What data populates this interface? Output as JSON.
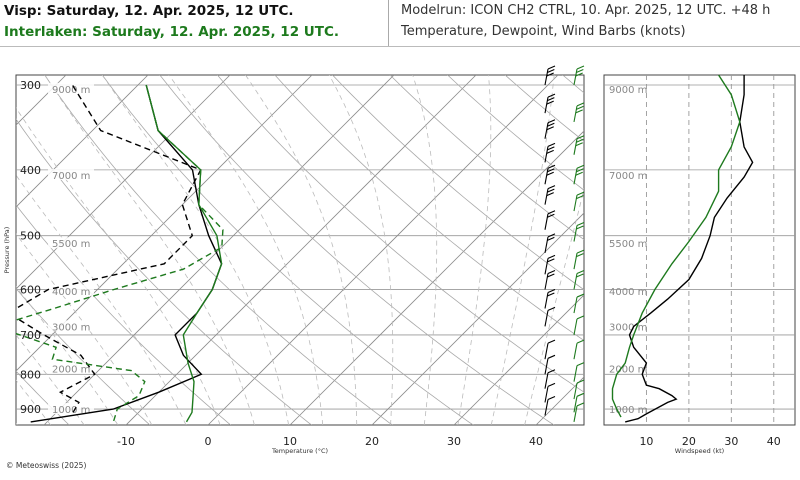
{
  "header": {
    "title_location": "Visp: Saturday, 12. Apr. 2025, 12 UTC.",
    "title_compare": "Interlaken: Saturday, 12. Apr. 2025, 12 UTC.",
    "model_info": "Modelrun: ICON CH2 CTRL, 10. Apr. 2025, 12 UTC. +48 h",
    "variables": "Temperature, Dewpoint, Wind Barbs (knots)"
  },
  "colors": {
    "visp": "#000000",
    "interlaken": "#1e7a1e",
    "grid": "#999999",
    "dashed": "#bbbbbb"
  },
  "credit": "© Meteoswiss (2025)",
  "chart_data": [
    {
      "type": "line",
      "subtype": "skew-t log-p diagram",
      "xlabel": "Temperature (°C)",
      "ylabel": "Pressure (hPa)",
      "x_ticks": [
        "-10",
        "0",
        "10",
        "20",
        "30",
        "40"
      ],
      "y_ticks": [
        "300",
        "400",
        "500",
        "600",
        "700",
        "800",
        "900"
      ],
      "height_labels": [
        "9000 m",
        "7000 m",
        "5500 m",
        "4000 m",
        "3000 m",
        "2000 m",
        "1000 m"
      ],
      "series": [
        {
          "name": "Visp",
          "role": "temperature",
          "points": [
            [
              -22,
              940
            ],
            [
              -13.5,
              900
            ],
            [
              -10,
              850
            ],
            [
              -7,
              800
            ],
            [
              -11.5,
              750
            ],
            [
              -15,
              700
            ],
            [
              -15,
              650
            ],
            [
              -16,
              600
            ],
            [
              -18,
              550
            ],
            [
              -23,
              500
            ],
            [
              -28,
              450
            ],
            [
              -33,
              400
            ],
            [
              -42,
              350
            ],
            [
              -49,
              300
            ]
          ]
        },
        {
          "name": "Visp",
          "role": "dewpoint",
          "points": [
            [
              -18,
              910
            ],
            [
              -18.5,
              880
            ],
            [
              -22,
              850
            ],
            [
              -20,
              800
            ],
            [
              -24,
              750
            ],
            [
              -31,
              700
            ],
            [
              -38,
              650
            ],
            [
              -36,
              600
            ],
            [
              -25,
              550
            ],
            [
              -25,
              500
            ],
            [
              -30,
              450
            ],
            [
              -32,
              400
            ],
            [
              -49,
              350
            ],
            [
              -58,
              300
            ]
          ]
        },
        {
          "name": "Interlaken",
          "role": "temperature",
          "points": [
            [
              -3,
              940
            ],
            [
              -3.5,
              910
            ],
            [
              -5,
              870
            ],
            [
              -7,
              820
            ],
            [
              -10,
              770
            ],
            [
              -14,
              700
            ],
            [
              -15,
              650
            ],
            [
              -16,
              600
            ],
            [
              -18,
              550
            ],
            [
              -22,
              500
            ],
            [
              -28,
              450
            ],
            [
              -32,
              400
            ],
            [
              -42,
              350
            ],
            [
              -49,
              300
            ]
          ]
        },
        {
          "name": "Interlaken",
          "role": "dewpoint",
          "points": [
            [
              -12,
              937
            ],
            [
              -13,
              900
            ],
            [
              -12,
              860
            ],
            [
              -13,
              820
            ],
            [
              -16,
              790
            ],
            [
              -27,
              760
            ],
            [
              -28,
              730
            ],
            [
              -38,
              680
            ],
            [
              -33,
              640
            ],
            [
              -28,
              600
            ],
            [
              -22,
              560
            ],
            [
              -20,
              520
            ],
            [
              -22,
              490
            ],
            [
              -28,
              450
            ],
            [
              -32,
              400
            ],
            [
              -42,
              350
            ],
            [
              -49,
              300
            ]
          ]
        }
      ]
    },
    {
      "type": "line",
      "subtype": "wind speed profile",
      "xlabel": "Windspeed (kt)",
      "x_ticks": [
        "10",
        "20",
        "30",
        "40"
      ],
      "xlim": [
        0,
        45
      ],
      "height_labels": [
        "9000 m",
        "7000 m",
        "5500 m",
        "4000 m",
        "3000 m",
        "2000 m",
        "1000 m"
      ],
      "series": [
        {
          "name": "Visp",
          "points": [
            [
              5,
              940
            ],
            [
              8,
              930
            ],
            [
              10,
              915
            ],
            [
              15,
              880
            ],
            [
              17,
              870
            ],
            [
              16,
              860
            ],
            [
              13,
              840
            ],
            [
              10,
              830
            ],
            [
              9,
              800
            ],
            [
              10,
              770
            ],
            [
              7,
              730
            ],
            [
              6,
              700
            ],
            [
              7,
              680
            ],
            [
              11,
              650
            ],
            [
              15,
              620
            ],
            [
              20,
              580
            ],
            [
              23,
              540
            ],
            [
              25,
              500
            ],
            [
              26,
              470
            ],
            [
              29,
              440
            ],
            [
              33,
              410
            ],
            [
              35,
              390
            ],
            [
              33,
              370
            ],
            [
              32,
              340
            ],
            [
              33,
              310
            ],
            [
              33,
              290
            ]
          ]
        },
        {
          "name": "Interlaken",
          "points": [
            [
              4,
              925
            ],
            [
              3,
              900
            ],
            [
              2,
              870
            ],
            [
              2,
              840
            ],
            [
              3,
              800
            ],
            [
              5,
              770
            ],
            [
              6,
              730
            ],
            [
              7,
              700
            ],
            [
              9,
              650
            ],
            [
              12,
              600
            ],
            [
              16,
              550
            ],
            [
              20,
              510
            ],
            [
              24,
              470
            ],
            [
              27,
              430
            ],
            [
              27,
              400
            ],
            [
              30,
              370
            ],
            [
              32,
              340
            ],
            [
              30,
              310
            ],
            [
              27,
              290
            ]
          ]
        }
      ]
    }
  ]
}
